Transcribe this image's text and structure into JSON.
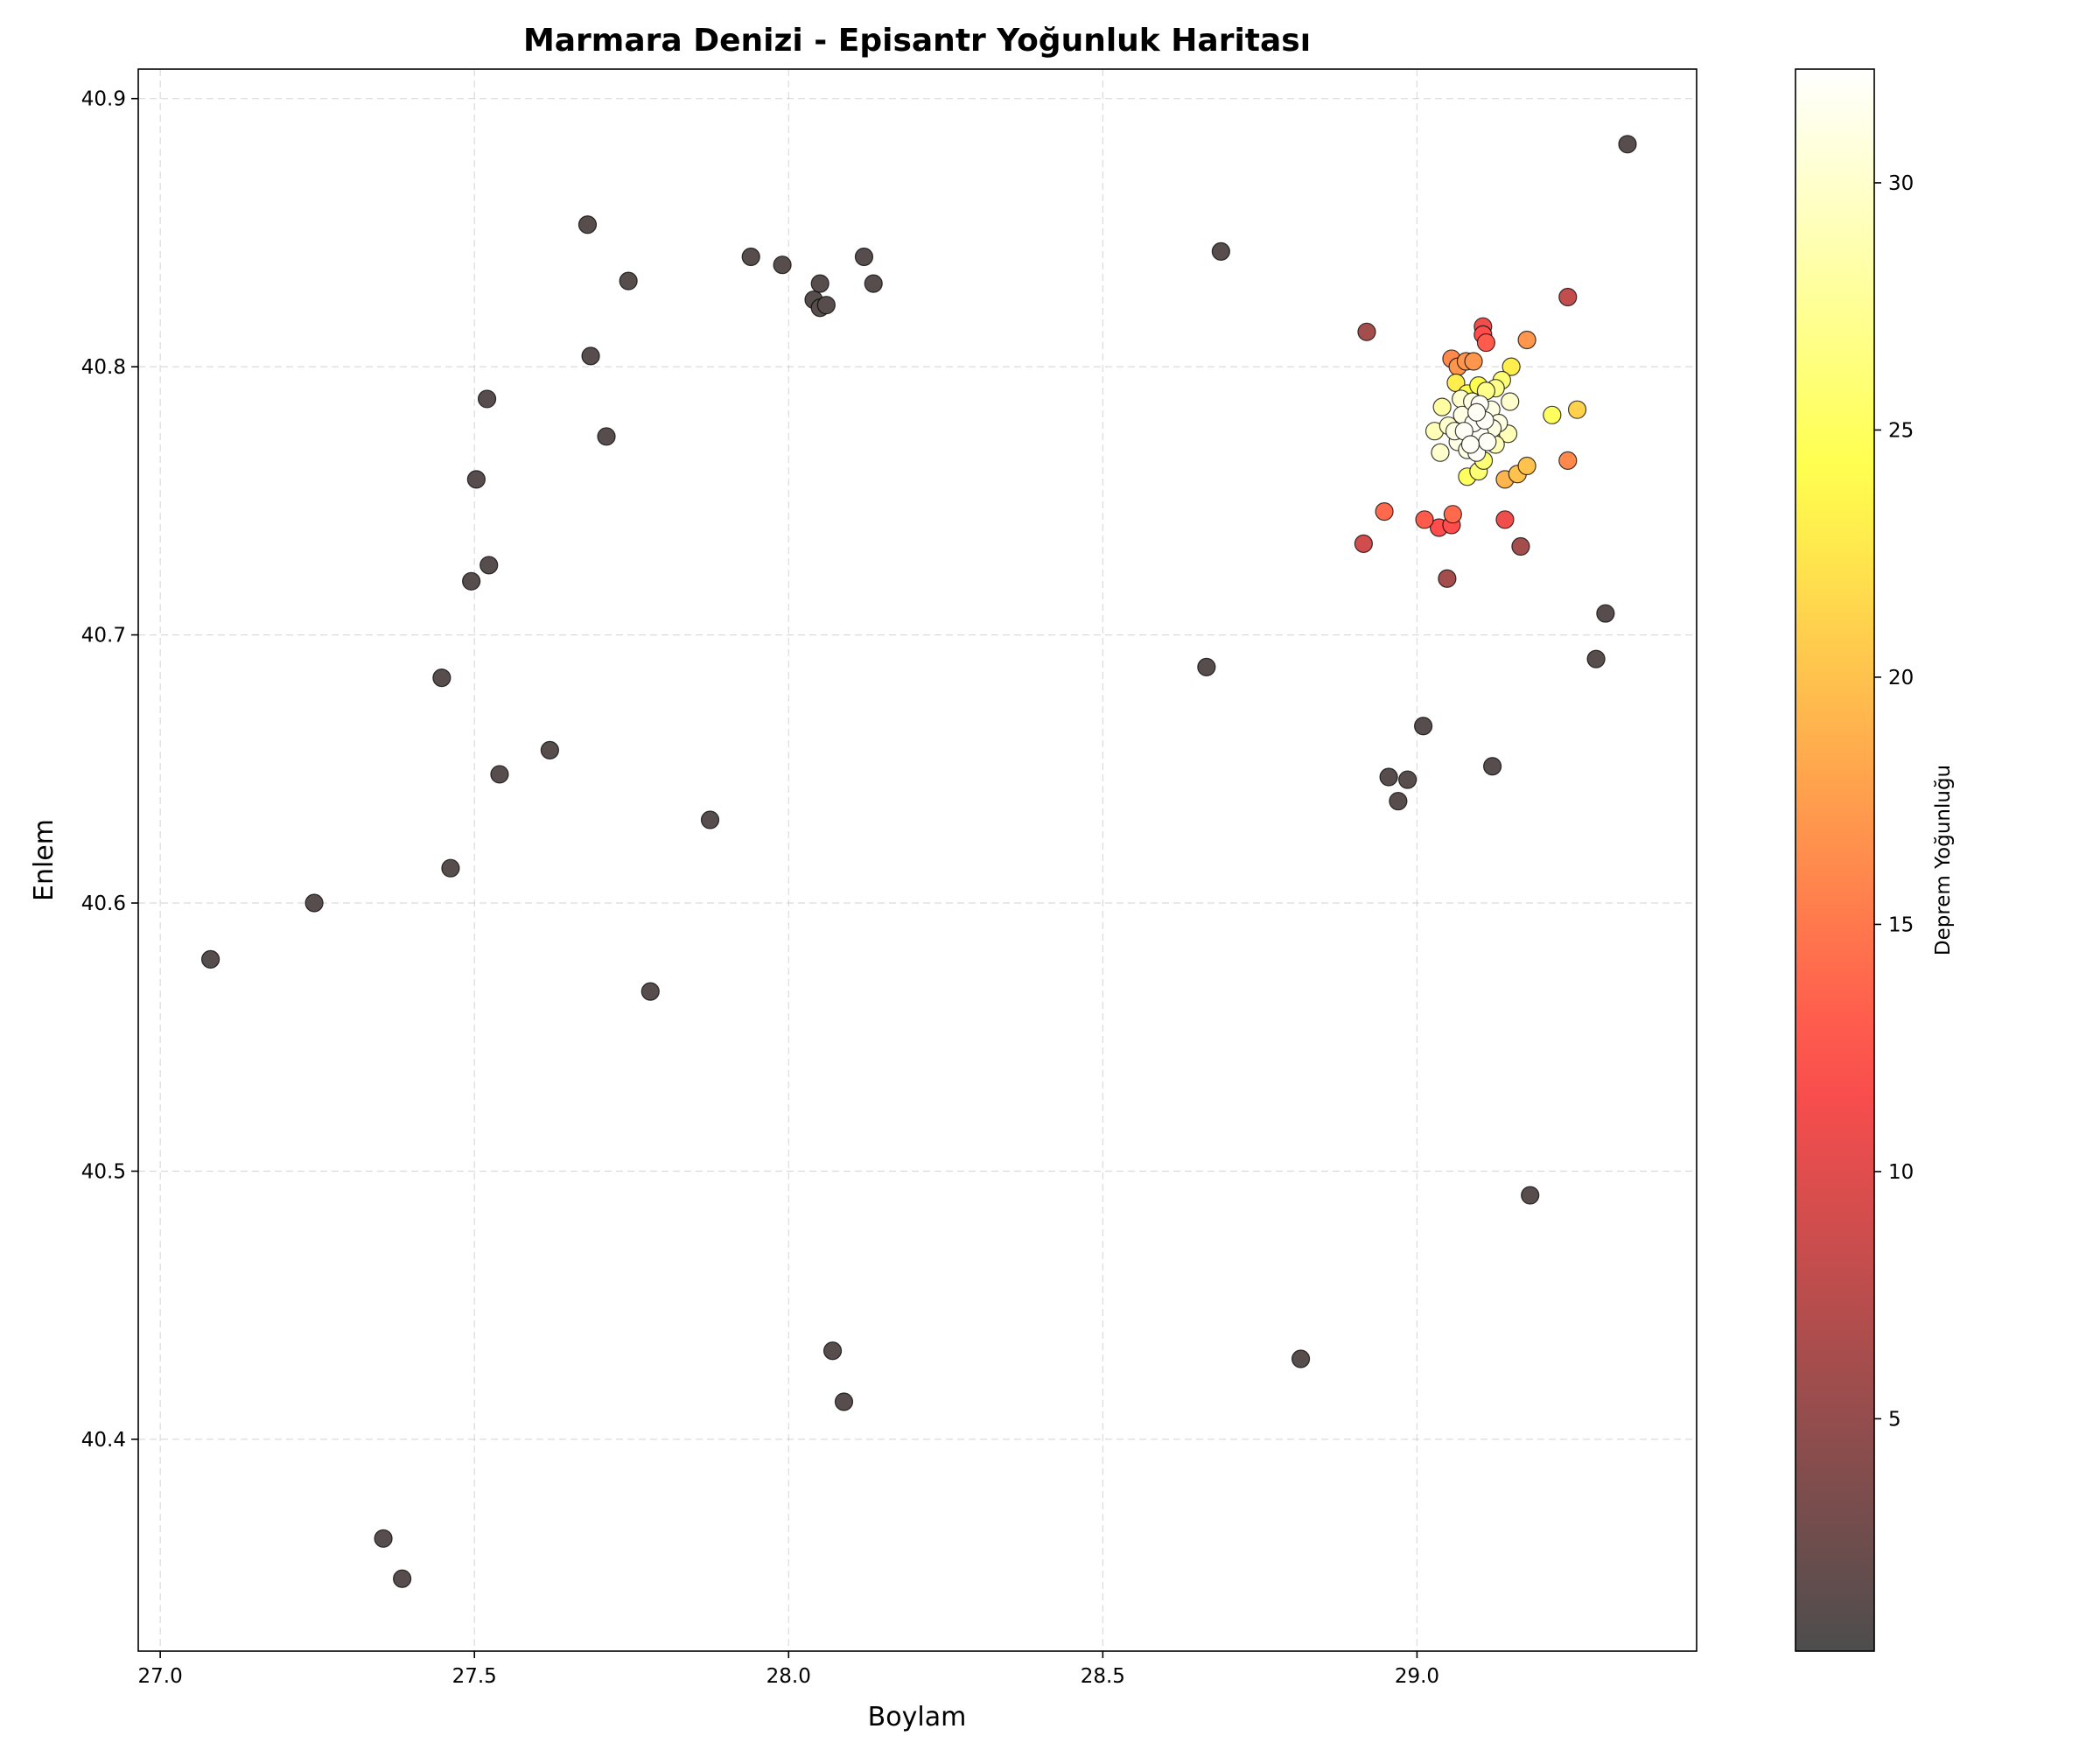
{
  "chart_data": {
    "type": "scatter",
    "title": "Marmara Denizi - Episantr Yoğunluk Haritası",
    "xlabel": "Boylam",
    "ylabel": "Enlem",
    "xlim": [
      26.965,
      29.445
    ],
    "ylim": [
      40.321,
      40.911
    ],
    "xticks": [
      27.0,
      27.5,
      28.0,
      28.5,
      29.0
    ],
    "xtick_labels": [
      "27.0",
      "27.5",
      "28.0",
      "28.5",
      "29.0"
    ],
    "yticks": [
      40.4,
      40.5,
      40.6,
      40.7,
      40.8,
      40.9
    ],
    "ytick_labels": [
      "40.4",
      "40.5",
      "40.6",
      "40.7",
      "40.8",
      "40.9"
    ],
    "grid": true,
    "colorbar": {
      "label": "Deprem Yoğunluğu",
      "cmap": "hot",
      "vmin": 0.3,
      "vmax": 32.3,
      "ticks": [
        5,
        10,
        15,
        20,
        25,
        30
      ],
      "tick_labels": [
        "5",
        "10",
        "15",
        "20",
        "25",
        "30"
      ]
    },
    "points": [
      [
        27.08,
        40.579,
        1
      ],
      [
        27.245,
        40.6,
        1
      ],
      [
        27.355,
        40.363,
        1
      ],
      [
        27.385,
        40.348,
        1
      ],
      [
        27.448,
        40.684,
        1
      ],
      [
        27.462,
        40.613,
        1
      ],
      [
        27.495,
        40.72,
        1
      ],
      [
        27.503,
        40.758,
        1
      ],
      [
        27.52,
        40.788,
        1
      ],
      [
        27.523,
        40.726,
        1
      ],
      [
        27.54,
        40.648,
        1
      ],
      [
        27.62,
        40.657,
        1
      ],
      [
        27.68,
        40.853,
        1
      ],
      [
        27.685,
        40.804,
        1
      ],
      [
        27.71,
        40.774,
        1
      ],
      [
        27.745,
        40.832,
        1
      ],
      [
        27.78,
        40.567,
        1
      ],
      [
        27.875,
        40.631,
        1
      ],
      [
        27.94,
        40.841,
        1
      ],
      [
        27.99,
        40.838,
        1
      ],
      [
        28.04,
        40.825,
        1
      ],
      [
        28.05,
        40.831,
        1
      ],
      [
        28.05,
        40.822,
        1
      ],
      [
        28.06,
        40.823,
        1
      ],
      [
        28.07,
        40.433,
        1
      ],
      [
        28.088,
        40.414,
        1
      ],
      [
        28.12,
        40.841,
        1
      ],
      [
        28.135,
        40.831,
        1
      ],
      [
        28.665,
        40.688,
        1
      ],
      [
        28.688,
        40.843,
        1
      ],
      [
        28.815,
        40.43,
        1
      ],
      [
        28.955,
        40.647,
        1
      ],
      [
        28.97,
        40.638,
        1
      ],
      [
        28.985,
        40.646,
        1
      ],
      [
        29.01,
        40.666,
        1
      ],
      [
        29.12,
        40.651,
        1
      ],
      [
        29.18,
        40.491,
        1
      ],
      [
        29.285,
        40.691,
        1
      ],
      [
        29.3,
        40.708,
        1
      ],
      [
        29.335,
        40.883,
        1
      ],
      [
        28.92,
        40.813,
        6
      ],
      [
        29.048,
        40.721,
        6
      ],
      [
        29.165,
        40.733,
        6
      ],
      [
        29.24,
        40.826,
        8
      ],
      [
        28.915,
        40.734,
        9
      ],
      [
        29.14,
        40.743,
        11
      ],
      [
        29.105,
        40.815,
        11
      ],
      [
        29.105,
        40.812,
        12
      ],
      [
        29.035,
        40.74,
        12
      ],
      [
        29.055,
        40.741,
        12
      ],
      [
        29.012,
        40.743,
        13
      ],
      [
        29.11,
        40.809,
        13
      ],
      [
        28.948,
        40.746,
        14
      ],
      [
        29.057,
        40.745,
        14
      ],
      [
        29.24,
        40.765,
        16
      ],
      [
        29.055,
        40.803,
        16
      ],
      [
        29.065,
        40.8,
        17
      ],
      [
        29.078,
        40.802,
        17
      ],
      [
        29.09,
        40.802,
        17
      ],
      [
        29.175,
        40.81,
        17
      ],
      [
        29.14,
        40.758,
        19
      ],
      [
        29.16,
        40.76,
        20
      ],
      [
        29.175,
        40.763,
        20
      ],
      [
        29.255,
        40.784,
        21
      ],
      [
        29.062,
        40.794,
        23
      ],
      [
        29.08,
        40.79,
        24
      ],
      [
        29.098,
        40.793,
        24
      ],
      [
        29.15,
        40.8,
        23
      ],
      [
        29.215,
        40.782,
        25
      ],
      [
        29.08,
        40.759,
        25
      ],
      [
        29.135,
        40.795,
        26
      ],
      [
        29.098,
        40.761,
        26
      ],
      [
        29.106,
        40.765,
        26
      ],
      [
        29.125,
        40.792,
        27
      ],
      [
        29.11,
        40.791,
        27
      ],
      [
        29.04,
        40.785,
        28
      ],
      [
        29.028,
        40.776,
        29
      ],
      [
        29.05,
        40.778,
        30
      ],
      [
        29.037,
        40.768,
        30
      ],
      [
        29.148,
        40.787,
        30
      ],
      [
        29.145,
        40.775,
        29
      ],
      [
        29.125,
        40.771,
        29
      ],
      [
        29.072,
        40.782,
        31
      ],
      [
        29.088,
        40.787,
        31
      ],
      [
        29.065,
        40.772,
        31
      ],
      [
        29.08,
        40.769,
        31
      ],
      [
        29.118,
        40.784,
        31
      ],
      [
        29.13,
        40.779,
        31
      ],
      [
        29.095,
        40.768,
        32
      ],
      [
        29.1,
        40.775,
        32
      ],
      [
        29.09,
        40.779,
        32
      ],
      [
        29.108,
        40.78,
        32
      ],
      [
        29.075,
        40.776,
        32
      ],
      [
        29.1,
        40.786,
        32
      ],
      [
        29.112,
        40.772,
        32
      ],
      [
        29.085,
        40.771,
        32
      ],
      [
        29.06,
        40.776,
        31
      ],
      [
        29.095,
        40.783,
        32
      ],
      [
        29.12,
        40.777,
        31
      ],
      [
        29.07,
        40.788,
        30
      ]
    ]
  }
}
